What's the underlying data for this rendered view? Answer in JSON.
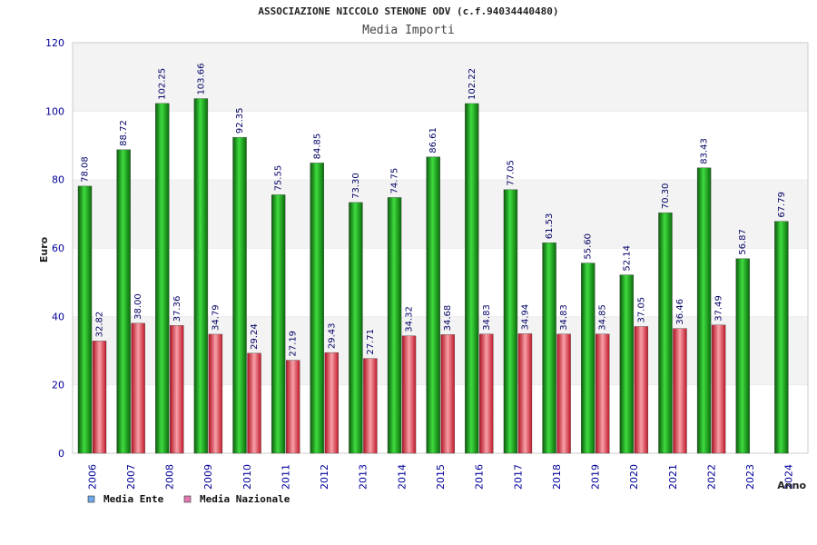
{
  "header": {
    "title": "ASSOCIAZIONE NICCOLO STENONE ODV (c.f.94034440480)",
    "subtitle": "Media Importi"
  },
  "colors": {
    "series_ente": "#1fa51f",
    "series_nazionale": "#e33a4a",
    "legend_ente": "#6fa8e8",
    "legend_nazionale": "#e07ab0"
  },
  "chart_data": {
    "type": "bar",
    "categories": [
      "2006",
      "2007",
      "2008",
      "2009",
      "2010",
      "2011",
      "2012",
      "2013",
      "2014",
      "2015",
      "2016",
      "2017",
      "2018",
      "2019",
      "2020",
      "2021",
      "2022",
      "2023",
      "2024"
    ],
    "series": [
      {
        "name": "Media Ente",
        "values": [
          78.08,
          88.72,
          102.25,
          103.66,
          92.35,
          75.55,
          84.85,
          73.3,
          74.75,
          86.61,
          102.22,
          77.05,
          61.53,
          55.6,
          52.14,
          70.3,
          83.43,
          56.87,
          67.79
        ]
      },
      {
        "name": "Media Nazionale",
        "values": [
          32.82,
          38.0,
          37.36,
          34.79,
          29.24,
          27.19,
          29.43,
          27.71,
          34.32,
          34.68,
          34.83,
          34.94,
          34.83,
          34.85,
          37.05,
          36.46,
          37.49,
          null,
          null
        ]
      }
    ],
    "value_labels": {
      "ente": [
        "78.08",
        "88.72",
        "102.25",
        "103.66",
        "92.35",
        "75.55",
        "84.85",
        "73.30",
        "74.75",
        "86.61",
        "102.22",
        "77.05",
        "61.53",
        "55.60",
        "52.14",
        "70.30",
        "83.43",
        "56.87",
        "67.79"
      ],
      "nazionale": [
        "32.82",
        "38.00",
        "37.36",
        "34.79",
        "29.24",
        "27.19",
        "29.43",
        "27.71",
        "34.32",
        "34.68",
        "34.83",
        "34.94",
        "34.83",
        "34.85",
        "37.05",
        "36.46",
        "37.49",
        "",
        ""
      ]
    },
    "yticks": [
      "0",
      "20",
      "40",
      "60",
      "80",
      "100",
      "120"
    ],
    "ylabel": "Euro",
    "xlabel": "Anno",
    "ylim": [
      0,
      120
    ],
    "grid": true,
    "legend_position": "bottom-left"
  }
}
